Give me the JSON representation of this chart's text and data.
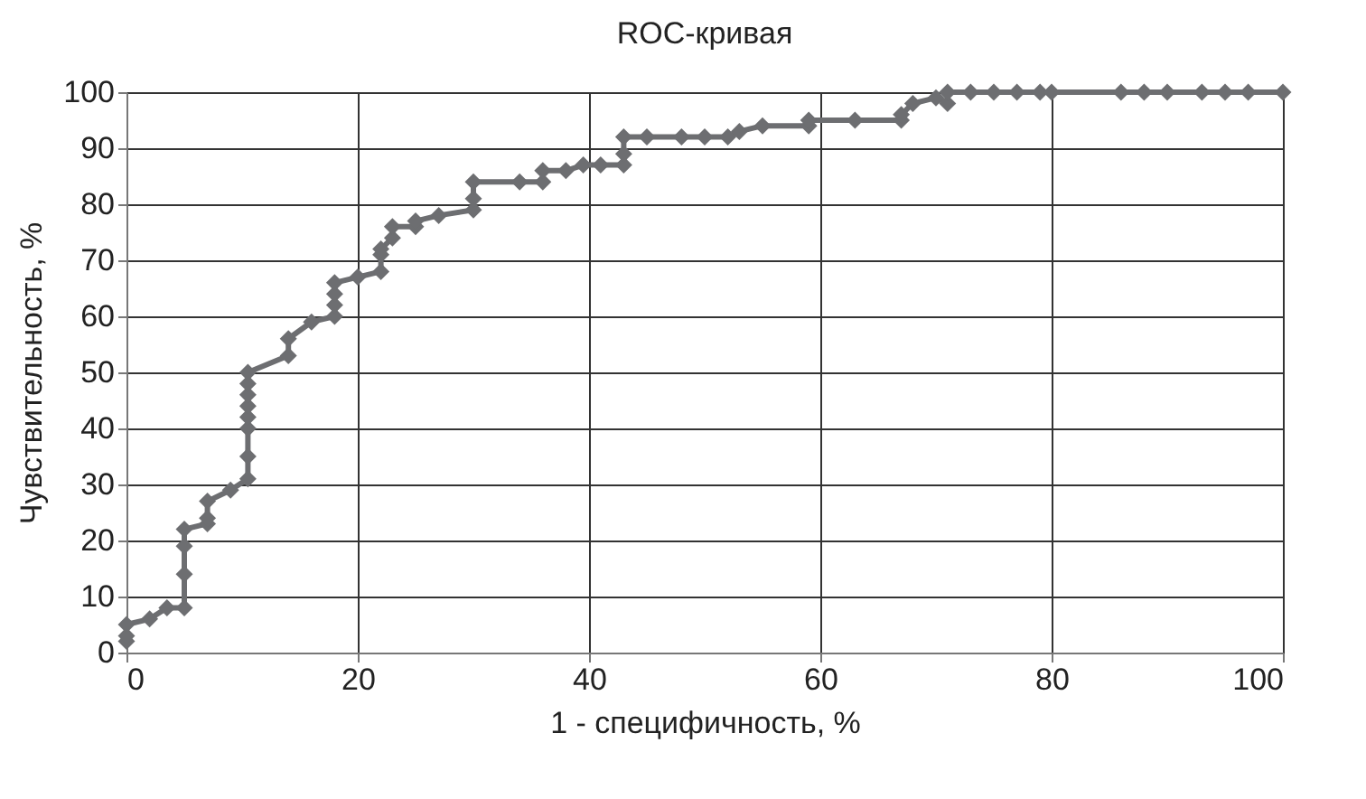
{
  "chart_data": {
    "type": "line",
    "title": "ROC-кривая",
    "xlabel": "1 - специфичность, %",
    "ylabel": "Чувствительность, %",
    "x": [
      0,
      0,
      0,
      2,
      3.5,
      5,
      5,
      5,
      5,
      7,
      7,
      7,
      9,
      10.5,
      10.5,
      10.5,
      10.5,
      10.5,
      10.5,
      10.5,
      10.5,
      14,
      14,
      16,
      18,
      18,
      18,
      18,
      20,
      22,
      22,
      22,
      23,
      23,
      25,
      25,
      27,
      30,
      30,
      30,
      34,
      36,
      36,
      38,
      39.5,
      41,
      43,
      43,
      43,
      45,
      48,
      50,
      52,
      53,
      55,
      59,
      59,
      63,
      67,
      67,
      68,
      70,
      71,
      71,
      73,
      75,
      77,
      79,
      80,
      86,
      88,
      90,
      93,
      95,
      97,
      100
    ],
    "series": [
      {
        "color": "#6d6e71",
        "values": [
          2,
          3,
          5,
          6,
          8,
          8,
          14,
          19,
          22,
          23,
          24,
          27,
          29,
          31,
          35,
          40,
          42,
          44,
          46,
          48,
          50,
          53,
          56,
          59,
          60,
          62,
          64,
          66,
          67,
          68,
          71,
          72,
          74,
          76,
          76,
          77,
          78,
          79,
          81,
          84,
          84,
          84,
          86,
          86,
          87,
          87,
          87,
          89,
          92,
          92,
          92,
          92,
          92,
          93,
          94,
          94,
          95,
          95,
          95,
          96,
          98,
          99,
          98,
          100,
          100,
          100,
          100,
          100,
          100,
          100,
          100,
          100,
          100,
          100,
          100,
          100
        ]
      }
    ],
    "xlim": [
      0,
      100
    ],
    "xticks": [
      0,
      20,
      40,
      60,
      80,
      100
    ],
    "ylim": [
      0,
      100
    ],
    "yticks": [
      0,
      10,
      20,
      30,
      40,
      50,
      60,
      70,
      80,
      90,
      100
    ],
    "grid": true,
    "marker": "diamond",
    "line_style": "solid"
  }
}
